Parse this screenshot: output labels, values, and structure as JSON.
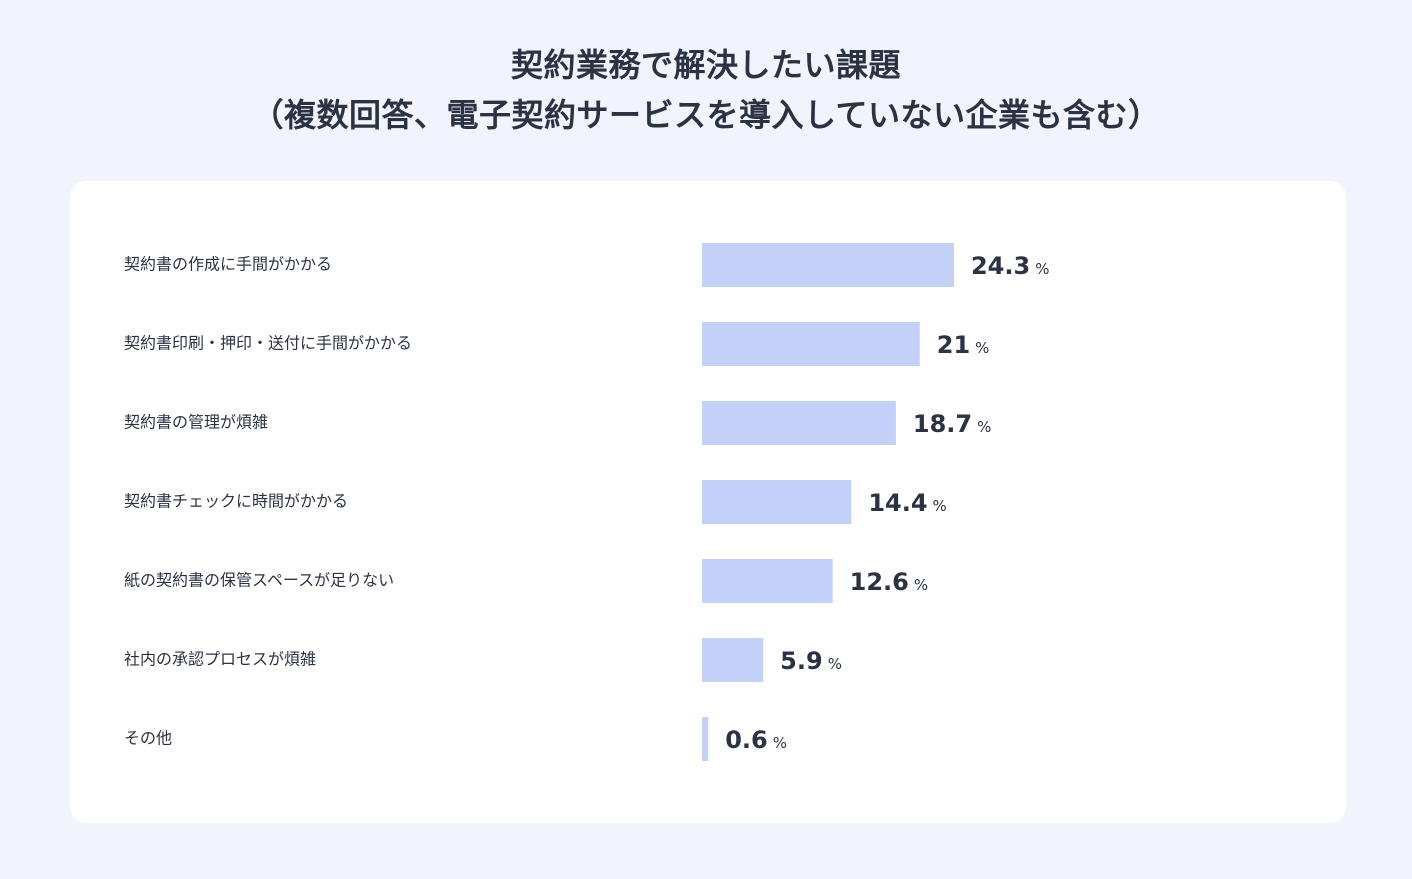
{
  "chart_data": {
    "type": "bar",
    "orientation": "horizontal",
    "title_lines": [
      "契約業務で解決したい課題",
      "（複数回答、電子契約サービスを導入していない企業も含む）"
    ],
    "categories": [
      "契約書の作成に手間がかかる",
      "契約書印刷・押印・送付に手間がかかる",
      "契約書の管理が煩雑",
      "契約書チェックに時間がかかる",
      "紙の契約書の保管スペースが足りない",
      "社内の承認プロセスが煩雑",
      "その他"
    ],
    "values": [
      24.3,
      21,
      18.7,
      14.4,
      12.6,
      5.9,
      0.6
    ],
    "value_labels": [
      "24.3",
      "21",
      "18.7",
      "14.4",
      "12.6",
      "5.9",
      "0.6"
    ],
    "unit": "%",
    "legend": "none",
    "grid": false
  },
  "colors": {
    "background": "#f1f4fd",
    "card": "#ffffff",
    "bar": "#c3d0f8",
    "text": "#2b3243"
  }
}
